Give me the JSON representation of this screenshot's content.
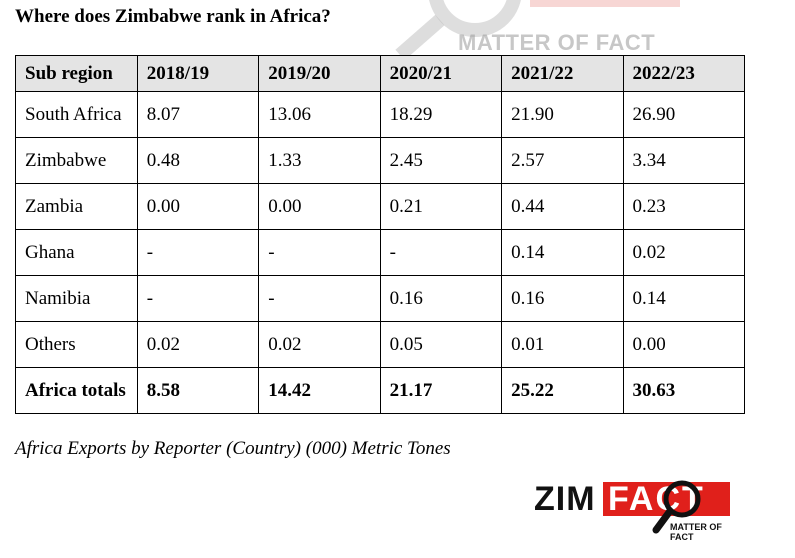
{
  "title": "Where does Zimbabwe rank in Africa?",
  "watermark": {
    "text": "MATTER OF FACT"
  },
  "table": {
    "headers": [
      "Sub region",
      "2018/19",
      "2019/20",
      "2020/21",
      "2021/22",
      "2022/23"
    ],
    "rows": [
      [
        "South Africa",
        "8.07",
        "13.06",
        "18.29",
        "21.90",
        "26.90"
      ],
      [
        "Zimbabwe",
        "0.48",
        "1.33",
        "2.45",
        "2.57",
        "3.34"
      ],
      [
        "Zambia",
        "0.00",
        "0.00",
        "0.21",
        "0.44",
        "0.23"
      ],
      [
        "Ghana",
        "-",
        "-",
        "-",
        "0.14",
        "0.02"
      ],
      [
        "Namibia",
        "-",
        "-",
        "0.16",
        "0.16",
        "0.14"
      ],
      [
        "Others",
        "0.02",
        "0.02",
        "0.05",
        "0.01",
        "0.00"
      ]
    ],
    "total": [
      "Africa totals",
      "8.58",
      "14.42",
      "21.17",
      "25.22",
      "30.63"
    ]
  },
  "caption": "Africa Exports by Reporter (Country) (000) Metric Tones",
  "logo": {
    "brand_left": "ZIM",
    "brand_right": "FACT",
    "tagline": "MATTER OF FACT",
    "colors": {
      "red": "#e0201b",
      "dark": "#111111"
    }
  }
}
